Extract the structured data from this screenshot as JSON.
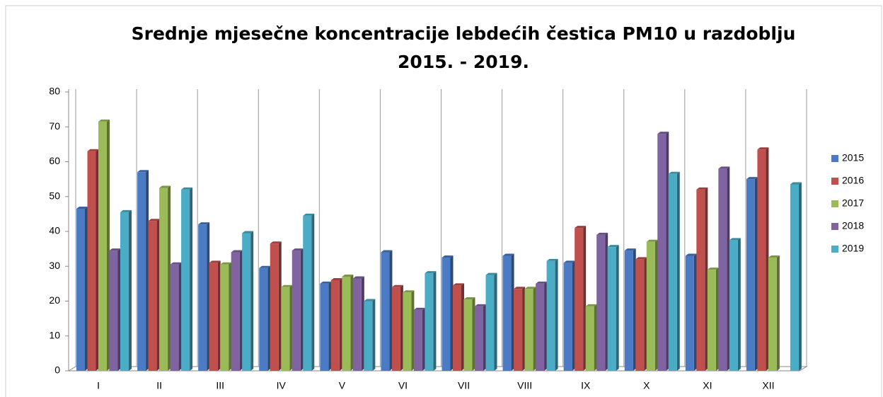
{
  "chart_data": {
    "type": "bar",
    "title": "Srednje mjesečne koncentracije lebdećih čestica PM10 u razdoblju 2015. - 2019.",
    "categories": [
      "I",
      "II",
      "III",
      "IV",
      "V",
      "VI",
      "VII",
      "VIII",
      "IX",
      "X",
      "XI",
      "XII"
    ],
    "series": [
      {
        "name": "2015",
        "color": "#4a7bc4",
        "values": [
          46.5,
          57,
          42,
          29.5,
          25,
          34,
          32.5,
          33,
          31,
          34.5,
          33,
          55
        ]
      },
      {
        "name": "2016",
        "color": "#c0504d",
        "values": [
          63,
          43,
          31,
          36.5,
          26,
          24,
          24.5,
          23.5,
          41,
          32,
          52,
          63.5
        ]
      },
      {
        "name": "2017",
        "color": "#9bbb59",
        "values": [
          71.5,
          52.5,
          30.5,
          24,
          27,
          22.5,
          20.5,
          23.5,
          18.5,
          37,
          29,
          32.5
        ]
      },
      {
        "name": "2018",
        "color": "#8064a2",
        "values": [
          34.5,
          30.5,
          34,
          34.5,
          26.5,
          17.5,
          18.5,
          25,
          39,
          68,
          58,
          null
        ]
      },
      {
        "name": "2019",
        "color": "#4bacc6",
        "values": [
          45.5,
          52,
          39.5,
          44.5,
          20,
          28,
          27.5,
          31.5,
          35.5,
          56.5,
          37.5,
          53.5
        ]
      }
    ],
    "ylim": [
      0,
      80
    ],
    "yticks": [
      0,
      10,
      20,
      30,
      40,
      50,
      60,
      70,
      80
    ],
    "legend": "right"
  }
}
